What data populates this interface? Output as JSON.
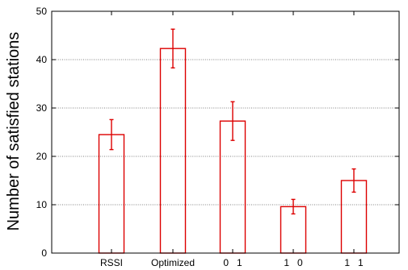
{
  "chart_data": {
    "type": "bar",
    "title": "",
    "xlabel": "",
    "ylabel": "Number of satisfied stations",
    "ylim": [
      0,
      50
    ],
    "yticks": [
      0,
      10,
      20,
      30,
      40,
      50
    ],
    "grid": true,
    "categories": [
      "RSSI",
      "Optimized",
      "0   1",
      "1   0",
      "1   1"
    ],
    "values": [
      24.5,
      42.3,
      27.3,
      9.6,
      15.0
    ],
    "errors": [
      3.1,
      4.0,
      4.0,
      1.5,
      2.4
    ],
    "bar_color": "#dd0000",
    "error_color": "#dd0000",
    "grid_color": "#000000"
  }
}
